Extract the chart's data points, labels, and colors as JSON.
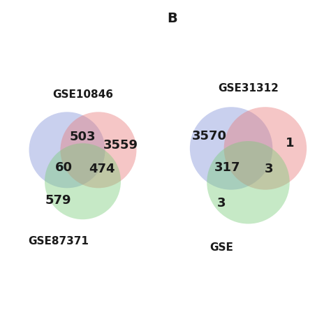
{
  "left_title": "GSE10846",
  "left_labels": {
    "blue_only": "",
    "red_only": "3559",
    "blue_red": "503",
    "green_only": "579",
    "blue_green": "60",
    "red_green": "474",
    "center": ""
  },
  "right_title": "GSE31312",
  "right_labels": {
    "blue_only": "3570",
    "red_only": "1",
    "blue_red": "",
    "green_only": "3",
    "blue_green": "317",
    "red_green": "3",
    "center": ""
  },
  "left_bottom_label": "GSE87371",
  "right_bottom_label": "GSE",
  "panel_label": "B",
  "text_color": "#1a1a1a",
  "bg_color": "#ffffff",
  "blue_color": "#8090d8",
  "red_color": "#e87878",
  "green_color": "#78cc78",
  "alpha": 0.42
}
